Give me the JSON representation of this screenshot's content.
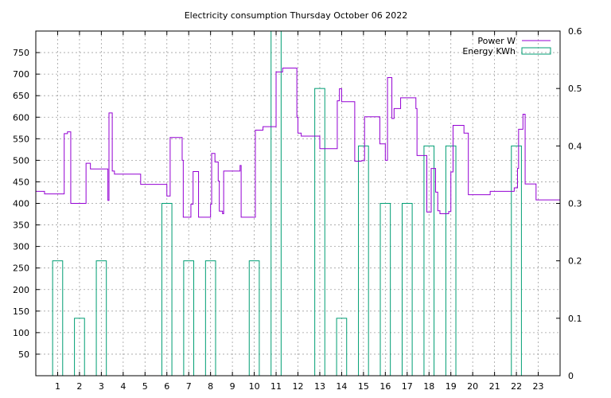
{
  "chart_data": {
    "type": "line",
    "title": "Electricity consumption Thursday October 06 2022",
    "legend_position": "top-right",
    "grid": true,
    "x": {
      "ticks": [
        1,
        2,
        3,
        4,
        5,
        6,
        7,
        8,
        9,
        10,
        11,
        12,
        13,
        14,
        15,
        16,
        17,
        18,
        19,
        20,
        21,
        22,
        23
      ],
      "range": [
        0,
        24
      ]
    },
    "y_left": {
      "ticks": [
        50,
        100,
        150,
        200,
        250,
        300,
        350,
        400,
        450,
        500,
        550,
        600,
        650,
        700,
        750
      ],
      "range": [
        0,
        800
      ]
    },
    "y_right": {
      "ticks": [
        "0",
        "0.1",
        "0.2",
        "0.3",
        "0.4",
        "0.5",
        "0.6"
      ],
      "range": [
        0,
        0.6
      ]
    },
    "series": [
      {
        "name": "Power W",
        "color": "#9400d3",
        "style": "steps",
        "points": [
          [
            0.0,
            428
          ],
          [
            0.4,
            422
          ],
          [
            1.3,
            562
          ],
          [
            1.45,
            566
          ],
          [
            1.6,
            400
          ],
          [
            2.3,
            493
          ],
          [
            2.5,
            480
          ],
          [
            3.3,
            407
          ],
          [
            3.35,
            610
          ],
          [
            3.5,
            475
          ],
          [
            3.6,
            468
          ],
          [
            4.8,
            444
          ],
          [
            6.0,
            417
          ],
          [
            6.15,
            553
          ],
          [
            6.7,
            500
          ],
          [
            6.75,
            368
          ],
          [
            7.1,
            398
          ],
          [
            7.2,
            474
          ],
          [
            7.45,
            368
          ],
          [
            8.0,
            398
          ],
          [
            8.05,
            516
          ],
          [
            8.2,
            496
          ],
          [
            8.35,
            452
          ],
          [
            8.4,
            382
          ],
          [
            8.55,
            376
          ],
          [
            8.6,
            475
          ],
          [
            9.35,
            488
          ],
          [
            9.4,
            368
          ],
          [
            10.05,
            570
          ],
          [
            10.4,
            578
          ],
          [
            11.0,
            705
          ],
          [
            11.3,
            714
          ],
          [
            11.95,
            600
          ],
          [
            12.0,
            563
          ],
          [
            12.15,
            556
          ],
          [
            13.0,
            527
          ],
          [
            13.8,
            638
          ],
          [
            13.9,
            666
          ],
          [
            14.0,
            636
          ],
          [
            14.6,
            498
          ],
          [
            14.9,
            499
          ],
          [
            15.05,
            601
          ],
          [
            15.75,
            538
          ],
          [
            16.0,
            500
          ],
          [
            16.1,
            692
          ],
          [
            16.3,
            597
          ],
          [
            16.4,
            620
          ],
          [
            16.7,
            645
          ],
          [
            17.4,
            620
          ],
          [
            17.45,
            511
          ],
          [
            17.9,
            380
          ],
          [
            18.1,
            481
          ],
          [
            18.3,
            426
          ],
          [
            18.4,
            383
          ],
          [
            18.5,
            376
          ],
          [
            18.9,
            381
          ],
          [
            19.0,
            473
          ],
          [
            19.1,
            581
          ],
          [
            19.6,
            563
          ],
          [
            19.8,
            420
          ],
          [
            20.8,
            428
          ],
          [
            21.9,
            436
          ],
          [
            22.05,
            481
          ],
          [
            22.1,
            572
          ],
          [
            22.3,
            607
          ],
          [
            22.4,
            445
          ],
          [
            22.9,
            408
          ],
          [
            24.0,
            408
          ]
        ]
      },
      {
        "name": "Energy KWh",
        "color": "#009e73",
        "style": "boxes",
        "boxes": [
          [
            1,
            0.2
          ],
          [
            2,
            0.1
          ],
          [
            3,
            0.2
          ],
          [
            6,
            0.3
          ],
          [
            7,
            0.2
          ],
          [
            8,
            0.2
          ],
          [
            10,
            0.2
          ],
          [
            11,
            0.6
          ],
          [
            13,
            0.5
          ],
          [
            14,
            0.1
          ],
          [
            15,
            0.4
          ],
          [
            16,
            0.3
          ],
          [
            17,
            0.3
          ],
          [
            18,
            0.4
          ],
          [
            19,
            0.4
          ],
          [
            22,
            0.4
          ]
        ]
      }
    ]
  }
}
